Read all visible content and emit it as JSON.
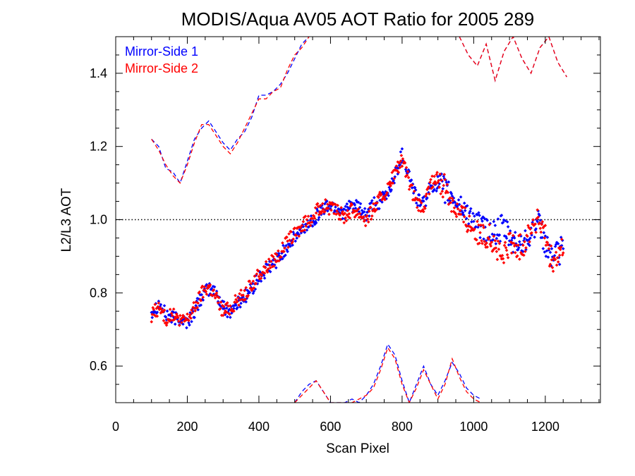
{
  "chart_data": {
    "type": "scatter",
    "title": "MODIS/Aqua AV05 AOT Ratio for 2005 289",
    "xlabel": "Scan Pixel",
    "ylabel": "L2/L3 AOT",
    "xlim": [
      0,
      1354
    ],
    "ylim": [
      0.5,
      1.5
    ],
    "x_ticks": [
      0,
      200,
      400,
      600,
      800,
      1000,
      1200
    ],
    "x_tick_labels": [
      "0",
      "200",
      "400",
      "600",
      "800",
      "1000",
      "1200"
    ],
    "y_ticks": [
      0.6,
      0.8,
      1.0,
      1.2,
      1.4
    ],
    "y_tick_labels": [
      "0.6",
      "0.8",
      "1.0",
      "1.2",
      "1.4"
    ],
    "reference_line": 1.0,
    "legend_placement": "top-left",
    "series": [
      {
        "name": "Mirror-Side 1",
        "color": "#0000ff",
        "x": [
          100,
          120,
          140,
          160,
          180,
          200,
          220,
          240,
          260,
          280,
          300,
          320,
          340,
          360,
          380,
          400,
          420,
          440,
          460,
          480,
          500,
          520,
          540,
          560,
          580,
          600,
          620,
          640,
          660,
          680,
          700,
          720,
          740,
          760,
          780,
          800,
          820,
          840,
          860,
          880,
          900,
          920,
          940,
          960,
          980,
          1000,
          1020,
          1040,
          1060,
          1080,
          1100,
          1120,
          1140,
          1160,
          1180,
          1200,
          1220,
          1240,
          1250
        ],
        "y": [
          0.75,
          0.77,
          0.74,
          0.73,
          0.73,
          0.72,
          0.75,
          0.79,
          0.81,
          0.8,
          0.76,
          0.75,
          0.77,
          0.79,
          0.81,
          0.84,
          0.86,
          0.88,
          0.9,
          0.93,
          0.95,
          0.97,
          0.99,
          1.01,
          1.03,
          1.04,
          1.03,
          1.02,
          1.04,
          1.03,
          1.01,
          1.04,
          1.05,
          1.07,
          1.12,
          1.18,
          1.12,
          1.06,
          1.04,
          1.09,
          1.1,
          1.08,
          1.06,
          1.04,
          1.02,
          1.0,
          0.98,
          0.97,
          0.96,
          0.98,
          0.95,
          0.93,
          0.94,
          0.97,
          0.99,
          0.93,
          0.9,
          0.91,
          0.93
        ],
        "upper_bound": [
          1.22,
          1.2,
          1.14,
          1.13,
          1.1,
          1.16,
          1.22,
          1.25,
          1.27,
          1.24,
          1.21,
          1.19,
          1.22,
          1.24,
          1.28,
          1.34,
          1.34,
          1.35,
          1.37,
          1.4,
          1.44,
          1.48,
          1.5
        ],
        "lower_bound": [
          0.5,
          0.53,
          0.55,
          0.56,
          0.53,
          0.5,
          0.48,
          0.49,
          0.51,
          0.5,
          0.52,
          0.55,
          0.6,
          0.66,
          0.63,
          0.56,
          0.49,
          0.55,
          0.6,
          0.55,
          0.52,
          0.56,
          0.61,
          0.58,
          0.54,
          0.52,
          0.51
        ]
      },
      {
        "name": "Mirror-Side 2",
        "color": "#ff0000",
        "x": [
          100,
          120,
          140,
          160,
          180,
          200,
          220,
          240,
          260,
          280,
          300,
          320,
          340,
          360,
          380,
          400,
          420,
          440,
          460,
          480,
          500,
          520,
          540,
          560,
          580,
          600,
          620,
          640,
          660,
          680,
          700,
          720,
          740,
          760,
          780,
          800,
          820,
          840,
          860,
          880,
          900,
          920,
          940,
          960,
          980,
          1000,
          1020,
          1040,
          1060,
          1080,
          1100,
          1120,
          1140,
          1160,
          1180,
          1200,
          1220,
          1240,
          1250
        ],
        "y": [
          0.74,
          0.76,
          0.73,
          0.74,
          0.72,
          0.73,
          0.76,
          0.8,
          0.82,
          0.79,
          0.75,
          0.76,
          0.78,
          0.8,
          0.82,
          0.85,
          0.87,
          0.89,
          0.91,
          0.94,
          0.96,
          0.98,
          1.0,
          1.02,
          1.04,
          1.03,
          1.02,
          1.01,
          1.03,
          1.02,
          1.0,
          1.03,
          1.06,
          1.08,
          1.13,
          1.16,
          1.1,
          1.04,
          1.03,
          1.1,
          1.11,
          1.09,
          1.05,
          1.02,
          1.0,
          0.98,
          0.95,
          0.96,
          0.93,
          0.89,
          0.94,
          0.92,
          0.93,
          0.98,
          1.0,
          0.95,
          0.88,
          0.9,
          0.92
        ],
        "upper_bound": [
          1.22,
          1.19,
          1.15,
          1.12,
          1.1,
          1.15,
          1.21,
          1.26,
          1.26,
          1.23,
          1.2,
          1.18,
          1.21,
          1.25,
          1.29,
          1.33,
          1.33,
          1.35,
          1.36,
          1.41,
          1.45,
          1.47,
          1.5
        ],
        "lower_bound": [
          0.5,
          0.52,
          0.54,
          0.56,
          0.53,
          0.5,
          0.48,
          0.49,
          0.5,
          0.51,
          0.52,
          0.54,
          0.59,
          0.65,
          0.62,
          0.55,
          0.5,
          0.54,
          0.59,
          0.55,
          0.51,
          0.55,
          0.62,
          0.57,
          0.53,
          0.51,
          0.5
        ]
      }
    ]
  }
}
